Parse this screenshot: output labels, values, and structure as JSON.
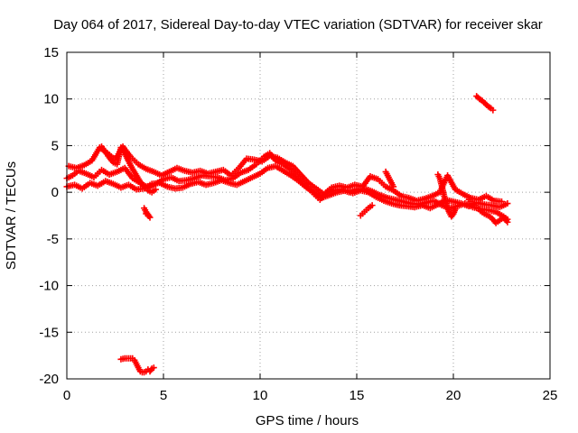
{
  "chart_data": {
    "type": "scatter",
    "title": "Day 064 of 2017, Sidereal Day-to-day VTEC variation (SDTVAR) for receiver skar",
    "xlabel": "GPS time / hours",
    "ylabel": "SDTVAR / TECUs",
    "xlim": [
      0,
      25
    ],
    "ylim": [
      -20,
      15
    ],
    "xticks": [
      0,
      5,
      10,
      15,
      20,
      25
    ],
    "yticks": [
      -20,
      -15,
      -10,
      -5,
      0,
      5,
      10,
      15
    ],
    "xtick_labels": [
      "0",
      "5",
      "10",
      "15",
      "20",
      "25"
    ],
    "ytick_labels": [
      "-20",
      "-15",
      "-10",
      "-5",
      "0",
      "5",
      "10",
      "15"
    ],
    "grid": true,
    "marker": "+",
    "color": "#ff0000",
    "series": [
      {
        "name": "SDTVAR",
        "segments": [
          {
            "x": [
              0.0,
              0.3,
              0.6,
              1.0,
              1.4,
              1.8,
              2.2,
              2.6,
              3.0,
              3.4,
              3.8,
              4.2,
              4.6,
              5.0,
              5.4,
              5.8,
              6.2,
              6.6,
              7.0,
              7.4,
              7.8,
              8.2,
              8.6,
              9.0,
              9.4,
              9.8,
              10.2,
              10.5,
              10.8,
              11.2,
              11.6,
              12.0,
              12.4,
              12.8,
              13.1,
              13.4,
              13.8,
              14.2,
              14.6,
              15.0,
              15.4,
              15.8,
              16.2,
              16.6,
              17.0,
              17.4,
              17.8,
              18.2,
              18.6,
              19.0,
              19.4,
              19.8,
              20.2,
              20.6,
              21.0,
              21.4,
              21.8,
              22.2,
              22.6,
              22.8
            ],
            "y": [
              1.5,
              1.8,
              2.3,
              2.0,
              1.6,
              2.4,
              1.9,
              2.2,
              2.6,
              1.5,
              1.0,
              0.5,
              0.9,
              1.4,
              1.6,
              1.2,
              1.3,
              1.5,
              1.8,
              1.7,
              1.6,
              1.3,
              1.5,
              2.1,
              2.4,
              3.0,
              3.8,
              4.2,
              3.4,
              3.0,
              2.4,
              1.5,
              0.6,
              -0.2,
              -0.8,
              -0.1,
              0.2,
              0.3,
              0.0,
              0.3,
              0.4,
              0.1,
              -0.3,
              -0.6,
              -0.8,
              -1.0,
              -1.2,
              -1.3,
              -1.1,
              -0.9,
              -1.4,
              -1.7,
              -1.5,
              -1.2,
              -1.6,
              -1.8,
              -1.9,
              -2.1,
              -2.6,
              -2.9
            ]
          },
          {
            "x": [
              0.0,
              0.4,
              0.8,
              1.2,
              1.6,
              2.0,
              2.4,
              2.8,
              3.2,
              3.6,
              4.0,
              4.4,
              4.8,
              5.2,
              5.6,
              6.0,
              6.4,
              6.8,
              7.2,
              7.6,
              8.0,
              8.4,
              8.8,
              9.2,
              9.6,
              10.0,
              10.4,
              10.8,
              11.2,
              11.6,
              12.0,
              12.4,
              12.8,
              13.2,
              13.6,
              14.0,
              14.4,
              14.8,
              15.2,
              15.6,
              16.0,
              16.4,
              16.8,
              17.2,
              17.6,
              18.0,
              18.4,
              18.8,
              19.2,
              19.6,
              20.0,
              20.4,
              20.8,
              21.2,
              21.6,
              22.0,
              22.4,
              22.8
            ],
            "y": [
              0.6,
              0.8,
              0.4,
              1.0,
              0.7,
              1.2,
              0.9,
              0.5,
              0.8,
              0.3,
              0.4,
              0.9,
              1.0,
              0.6,
              0.4,
              0.5,
              0.9,
              1.1,
              0.8,
              1.0,
              1.3,
              1.0,
              0.8,
              1.2,
              1.6,
              2.0,
              2.6,
              2.8,
              2.3,
              1.8,
              1.2,
              0.5,
              0.0,
              -0.6,
              -0.3,
              0.0,
              0.2,
              -0.1,
              0.2,
              0.0,
              -0.5,
              -0.9,
              -1.2,
              -1.4,
              -1.5,
              -1.6,
              -1.4,
              -1.7,
              -1.3,
              -0.8,
              -1.0,
              -1.2,
              -1.5,
              -1.1,
              -1.3,
              -1.4,
              -1.6,
              -1.2
            ]
          },
          {
            "x": [
              0.1,
              0.5,
              0.9,
              1.3,
              1.7,
              2.1,
              2.5,
              2.9,
              3.3,
              3.7,
              4.1,
              4.5,
              4.9,
              5.3,
              5.7,
              6.1,
              6.5,
              6.9,
              7.3,
              7.7,
              8.1,
              8.5,
              8.9,
              9.3,
              9.7,
              10.1,
              10.5,
              10.9,
              11.3,
              11.7,
              12.1,
              12.5,
              12.9,
              13.3,
              13.7,
              14.1,
              14.5,
              14.9,
              15.3,
              15.7,
              16.1,
              16.5,
              16.9,
              17.3,
              17.7,
              18.1,
              18.5,
              18.9,
              19.3,
              19.7,
              20.1,
              20.5,
              20.9,
              21.3,
              21.7,
              22.1,
              22.5
            ],
            "y": [
              2.8,
              2.6,
              2.9,
              3.4,
              4.8,
              4.2,
              3.5,
              4.9,
              3.8,
              3.0,
              2.5,
              2.2,
              1.8,
              2.2,
              2.6,
              2.3,
              2.1,
              2.3,
              2.0,
              2.2,
              2.4,
              1.8,
              2.6,
              3.6,
              3.5,
              3.3,
              3.9,
              3.7,
              3.2,
              2.8,
              1.9,
              1.0,
              0.4,
              -0.2,
              0.5,
              0.7,
              0.5,
              0.8,
              0.6,
              1.7,
              1.4,
              0.6,
              0.2,
              -0.4,
              -0.6,
              -0.9,
              -0.7,
              -0.4,
              0.0,
              1.8,
              0.3,
              -0.2,
              -0.6,
              -0.8,
              -0.4,
              -0.9,
              -1.0
            ]
          },
          {
            "x": [
              1.8,
              2.0,
              2.2,
              2.4,
              2.6,
              2.8,
              3.0,
              3.2,
              3.4,
              3.6,
              3.8,
              4.0,
              4.2,
              4.4,
              4.6
            ],
            "y": [
              4.9,
              4.3,
              3.7,
              3.2,
              3.0,
              4.8,
              4.2,
              3.3,
              2.5,
              1.8,
              1.1,
              0.6,
              0.2,
              0.0,
              0.3
            ]
          },
          {
            "x": [
              4.0,
              4.1,
              4.2,
              4.3,
              4.1
            ],
            "y": [
              -1.7,
              -2.1,
              -2.4,
              -2.7,
              -2.3
            ]
          },
          {
            "x": [
              16.5,
              16.6,
              16.7,
              16.8,
              16.9
            ],
            "y": [
              2.2,
              1.8,
              1.4,
              1.0,
              0.6
            ]
          },
          {
            "x": [
              15.2,
              15.4,
              15.6,
              15.8
            ],
            "y": [
              -2.5,
              -2.1,
              -1.7,
              -1.4
            ]
          },
          {
            "x": [
              19.2,
              19.3,
              19.4,
              19.5,
              19.6,
              19.7,
              19.8,
              19.9,
              20.0,
              20.1
            ],
            "y": [
              1.9,
              1.5,
              0.7,
              -0.2,
              -1.0,
              -1.7,
              -2.2,
              -2.6,
              -2.3,
              -1.8
            ]
          },
          {
            "x": [
              20.8,
              21.0,
              21.2,
              21.4,
              21.6,
              21.8,
              22.0,
              22.2,
              22.4,
              22.6,
              22.8
            ],
            "y": [
              -0.8,
              -1.2,
              -1.6,
              -2.0,
              -2.3,
              -2.5,
              -2.8,
              -3.3,
              -3.0,
              -2.7,
              -3.2
            ]
          },
          {
            "x": [
              21.2,
              21.35,
              21.5,
              21.65,
              21.8,
              21.95,
              22.05
            ],
            "y": [
              10.3,
              10.0,
              9.8,
              9.5,
              9.2,
              9.0,
              8.8
            ]
          },
          {
            "x": [
              2.8,
              3.0,
              3.2,
              3.4,
              3.5,
              3.6,
              3.7,
              3.8,
              3.9,
              4.0,
              4.1,
              4.2,
              4.3,
              4.4,
              4.5
            ],
            "y": [
              -17.9,
              -17.8,
              -17.8,
              -17.8,
              -18.0,
              -18.4,
              -18.8,
              -19.2,
              -19.3,
              -19.3,
              -19.2,
              -19.0,
              -19.2,
              -18.9,
              -18.8
            ]
          }
        ]
      }
    ]
  }
}
